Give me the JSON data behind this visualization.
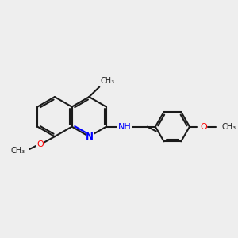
{
  "bg_color": "#eeeeee",
  "bond_color": "#1a1a1a",
  "n_color": "#0000ff",
  "o_color": "#ff0000",
  "c_color": "#1a1a1a",
  "lw": 1.5,
  "lw2": 1.0,
  "figsize": [
    3.0,
    3.0
  ],
  "dpi": 100,
  "xlim": [
    0,
    10
  ],
  "ylim": [
    0,
    10
  ],
  "font_size": 7.5
}
